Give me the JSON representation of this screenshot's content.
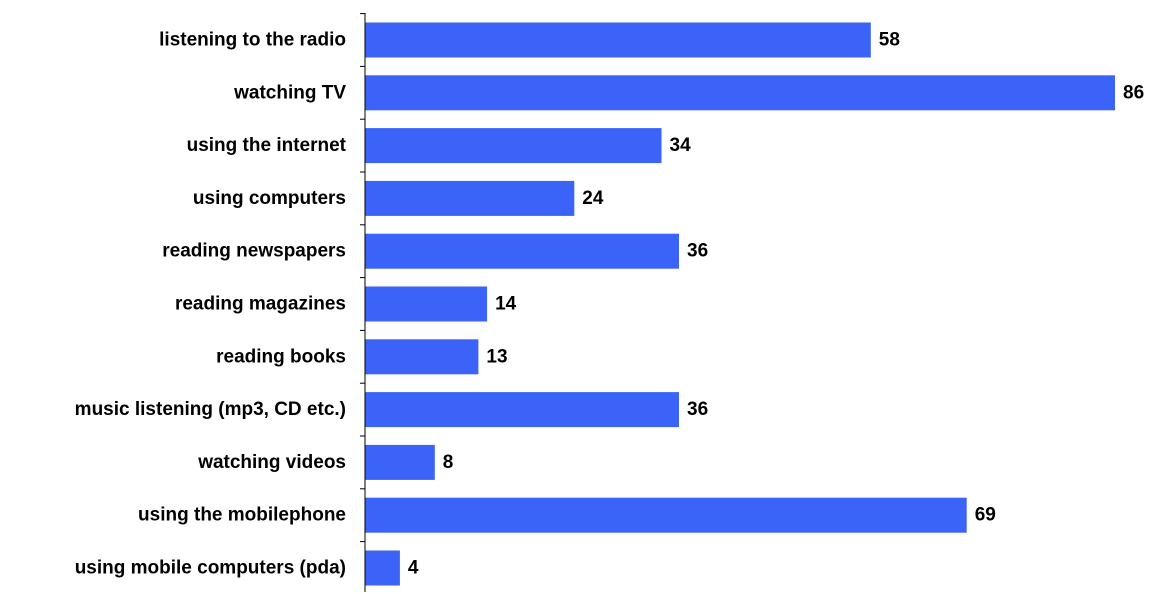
{
  "chart_data": {
    "type": "bar",
    "orientation": "horizontal",
    "categories": [
      "listening to the radio",
      "watching TV",
      "using the internet",
      "using computers",
      "reading newspapers",
      "reading magazines",
      "reading books",
      "music listening (mp3, CD etc.)",
      "watching videos",
      "using the mobilephone",
      "using mobile computers (pda)"
    ],
    "values": [
      58,
      86,
      34,
      24,
      36,
      14,
      13,
      36,
      8,
      69,
      4
    ],
    "xlim": [
      0,
      86
    ],
    "bar_color": "#3b63f7",
    "grid": false,
    "legend": "none",
    "data_labels": true
  }
}
